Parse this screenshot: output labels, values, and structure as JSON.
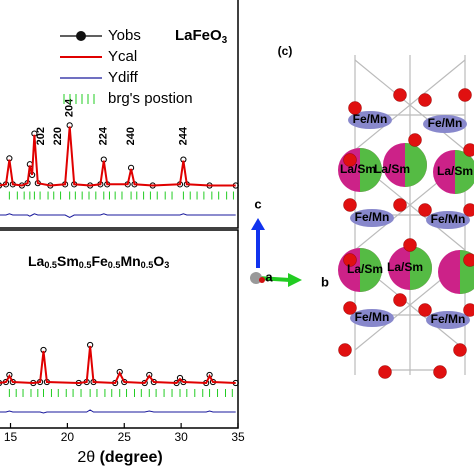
{
  "chart_data": [
    {
      "type": "line",
      "title": [
        "LaFeO",
        "3"
      ],
      "x": [
        14.0,
        14.6,
        14.9,
        15.2,
        16.0,
        16.5,
        16.7,
        16.9,
        17.1,
        17.4,
        18.5,
        19.8,
        20.2,
        20.6,
        22.0,
        22.9,
        23.2,
        23.5,
        25.3,
        25.6,
        25.9,
        27.5,
        29.9,
        30.2,
        30.5,
        32.5,
        34.8
      ],
      "series": [
        {
          "name": "Yobs",
          "color": "#000000",
          "values": [
            36,
            37,
            59,
            37,
            36,
            38,
            54,
            45,
            80,
            38,
            36,
            37,
            87,
            37,
            36,
            37,
            58,
            37,
            37,
            51,
            37,
            36,
            37,
            58,
            37,
            36,
            36
          ]
        },
        {
          "name": "Ycal",
          "color": "#e00000",
          "values": [
            36,
            37,
            58,
            37,
            36,
            38,
            53,
            45,
            79,
            38,
            36,
            37,
            86,
            37,
            36,
            37,
            57,
            37,
            37,
            50,
            37,
            36,
            37,
            57,
            37,
            36,
            36
          ]
        },
        {
          "name": "Ydiff",
          "color": "#1a1a9c",
          "values": [
            11,
            11,
            12,
            11,
            11,
            11,
            10,
            11,
            12,
            11,
            11,
            11,
            9,
            11,
            11,
            11,
            12,
            11,
            11,
            11,
            11,
            11,
            11,
            12,
            11,
            11,
            11
          ]
        }
      ],
      "reflections": {
        "name": "brg's postion",
        "color": "#22cc22",
        "x": [
          14.9,
          15.6,
          16.2,
          16.7,
          17.1,
          17.6,
          18.3,
          18.8,
          19.4,
          20.2,
          20.7,
          21.3,
          21.9,
          22.5,
          23.2,
          23.7,
          24.2,
          24.8,
          25.6,
          26.1,
          26.7,
          27.3,
          27.9,
          28.6,
          29.2,
          30.2,
          30.8,
          31.4,
          32.0,
          32.7,
          33.3,
          34.0,
          34.6
        ]
      },
      "annotations": [
        {
          "text": "202",
          "x": 17.7
        },
        {
          "text": "220",
          "x": 19.2
        },
        {
          "text": "204",
          "x": 20.2
        },
        {
          "text": "224",
          "x": 23.2
        },
        {
          "text": "240",
          "x": 25.6
        },
        {
          "text": "244",
          "x": 30.2
        }
      ],
      "xlim": [
        13.9,
        35.0
      ],
      "ylim": [
        0,
        100
      ]
    },
    {
      "type": "line",
      "title": [
        "La",
        "0.5",
        "Sm",
        "0.5",
        "Fe",
        "0.5",
        "Mn",
        "0.5",
        "O",
        "3"
      ],
      "x": [
        14.0,
        14.6,
        14.9,
        15.2,
        17.0,
        17.6,
        17.9,
        18.2,
        21.0,
        21.7,
        22.0,
        22.3,
        24.2,
        24.6,
        25.0,
        26.8,
        27.2,
        27.6,
        29.6,
        29.9,
        30.2,
        32.2,
        32.5,
        32.8,
        34.8
      ],
      "series": [
        {
          "color": "#000000",
          "values": [
            47,
            48,
            55,
            48,
            47,
            48,
            80,
            48,
            47,
            48,
            85,
            48,
            47,
            58,
            48,
            47,
            55,
            48,
            47,
            52,
            48,
            47,
            55,
            48,
            47
          ]
        },
        {
          "color": "#e00000",
          "values": [
            47,
            48,
            54,
            48,
            47,
            48,
            79,
            48,
            47,
            48,
            84,
            48,
            47,
            57,
            48,
            47,
            54,
            48,
            47,
            51,
            48,
            47,
            54,
            48,
            47
          ]
        },
        {
          "color": "#1a1a9c",
          "values": [
            18,
            18,
            19,
            18,
            18,
            18,
            17,
            18,
            18,
            18,
            20,
            18,
            18,
            18,
            18,
            18,
            19,
            18,
            18,
            18,
            18,
            18,
            19,
            18,
            18
          ]
        }
      ],
      "reflections": {
        "color": "#22cc22",
        "x": [
          14.9,
          15.5,
          16.1,
          16.8,
          17.4,
          17.9,
          18.6,
          19.2,
          19.9,
          20.5,
          21.2,
          22.0,
          22.6,
          23.3,
          23.9,
          24.6,
          25.2,
          25.9,
          26.5,
          27.2,
          27.8,
          28.5,
          29.2,
          29.9,
          30.5,
          31.2,
          31.9,
          32.5,
          33.2,
          33.9,
          34.5
        ]
      },
      "xlabel": [
        "2θ ",
        "(degree)"
      ],
      "xlim": [
        13.9,
        35.0
      ],
      "ylim": [
        0,
        100
      ],
      "xticks": [
        15,
        20,
        25,
        30,
        35
      ]
    }
  ],
  "structure": {
    "panel_label": "(c)",
    "atom_labels": [
      "Fe/Mn",
      "Fe/Mn",
      "La/Sm",
      "La/Sm",
      "La/Sm",
      "Fe/Mn",
      "Fe/Mn",
      "La/Sm",
      "La/Sm",
      "Fe/Mn",
      "Fe/Mn"
    ],
    "axes": [
      "c",
      "a",
      "b"
    ]
  }
}
